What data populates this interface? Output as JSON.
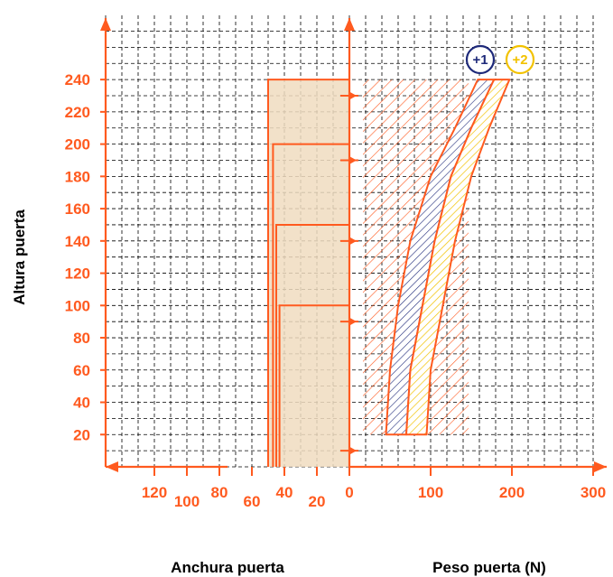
{
  "chart_data": {
    "type": "area",
    "title": "",
    "ylabel": "Altura puerta",
    "xlabel_left": "Anchura puerta",
    "xlabel_right": "Peso puerta (N)",
    "y_ticks": [
      20,
      40,
      60,
      80,
      100,
      120,
      140,
      160,
      180,
      200,
      220,
      240
    ],
    "ylim": [
      0,
      240
    ],
    "width_ticks": [
      120,
      100,
      80,
      60,
      40,
      20,
      0
    ],
    "weight_ticks": [
      0,
      100,
      200,
      300
    ],
    "weight_xlim": [
      0,
      300
    ],
    "grid": true,
    "colors": {
      "accent": "#ff5a1f",
      "band1": "#1f2a7a",
      "band2": "#f2c200",
      "fill_tan": "#f0dcc0",
      "grid": "#000000"
    },
    "width_steps": [
      {
        "width": 50,
        "height": 240
      },
      {
        "width": 47,
        "height": 200
      },
      {
        "width": 45,
        "height": 150
      },
      {
        "width": 43,
        "height": 100
      }
    ],
    "height_markers": [
      10,
      90,
      140,
      190,
      230
    ],
    "hatched_region": {
      "x_range": [
        10,
        140
      ],
      "y_range": [
        20,
        240
      ]
    },
    "series": [
      {
        "name": "+1",
        "left": [
          [
            45,
            20
          ],
          [
            50,
            60
          ],
          [
            60,
            100
          ],
          [
            75,
            140
          ],
          [
            100,
            180
          ],
          [
            130,
            210
          ],
          [
            158,
            240
          ]
        ],
        "right": [
          [
            70,
            20
          ],
          [
            75,
            60
          ],
          [
            90,
            100
          ],
          [
            105,
            140
          ],
          [
            125,
            180
          ],
          [
            150,
            210
          ],
          [
            178,
            240
          ]
        ]
      },
      {
        "name": "+2",
        "left": [
          [
            70,
            20
          ],
          [
            75,
            60
          ],
          [
            90,
            100
          ],
          [
            105,
            140
          ],
          [
            125,
            180
          ],
          [
            150,
            210
          ],
          [
            178,
            240
          ]
        ],
        "right": [
          [
            95,
            20
          ],
          [
            100,
            60
          ],
          [
            115,
            100
          ],
          [
            130,
            140
          ],
          [
            150,
            180
          ],
          [
            172,
            210
          ],
          [
            197,
            240
          ]
        ]
      }
    ]
  }
}
